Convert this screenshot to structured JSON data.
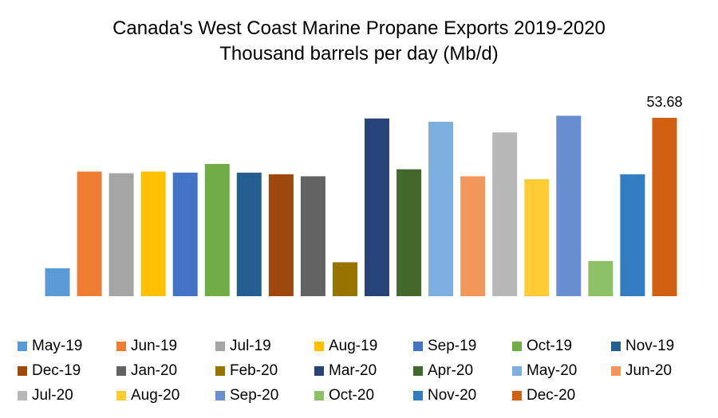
{
  "chart_data": {
    "type": "bar",
    "title": [
      "Canada's West Coast Marine Propane Exports 2019-2020",
      "Thousand barrels per day (Mb/d)"
    ],
    "xlabel": "",
    "ylabel": "",
    "ylim": [
      0,
      58
    ],
    "grid": false,
    "legend_position": "bottom",
    "categories": [
      "May-19",
      "Jun-19",
      "Jul-19",
      "Aug-19",
      "Sep-19",
      "Oct-19",
      "Nov-19",
      "Dec-19",
      "Jan-20",
      "Feb-20",
      "Mar-20",
      "Apr-20",
      "May-20",
      "Jun-20",
      "Jul-20",
      "Aug-20",
      "Sep-20",
      "Oct-20",
      "Nov-20",
      "Dec-20"
    ],
    "values": [
      8.4,
      37.5,
      37.0,
      37.5,
      37.2,
      39.8,
      37.2,
      36.7,
      36.1,
      10.2,
      53.5,
      38.2,
      52.5,
      36.1,
      49.3,
      35.2,
      54.3,
      10.6,
      36.7,
      53.68
    ],
    "colors": [
      "#5b9bd5",
      "#ed7d31",
      "#a5a5a5",
      "#ffc000",
      "#4472c4",
      "#70ad47",
      "#255e91",
      "#9e480e",
      "#636363",
      "#997300",
      "#264478",
      "#43682b",
      "#7cafdd",
      "#f1975a",
      "#b7b7b7",
      "#ffcd33",
      "#698ed0",
      "#8cc168",
      "#327dc2",
      "#d26012"
    ],
    "data_labels": [
      {
        "index": 19,
        "text": "53.68"
      }
    ]
  }
}
